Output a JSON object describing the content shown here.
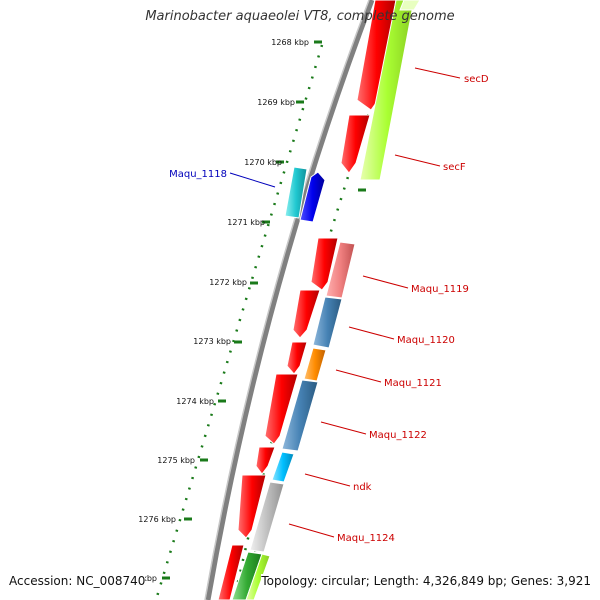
{
  "title": "Marinobacter aquaeolei VT8, complete genome",
  "footer": {
    "accession": "Accession: NC_008740",
    "stats": "Topology: circular; Length: 4,326,849 bp; Genes: 3,921"
  },
  "kbp_labels": [
    "1268 kbp",
    "1269 kbp",
    "1270 kbp",
    "1271 kbp",
    "1272 kbp",
    "1273 kbp",
    "1274 kbp",
    "1275 kbp",
    "1276 kbp",
    "1277 kbp"
  ],
  "gene_labels": {
    "maqu_1118": "Maqu_1118",
    "secD": "secD",
    "secF": "secF",
    "maqu_1119": "Maqu_1119",
    "maqu_1120": "Maqu_1120",
    "maqu_1121": "Maqu_1121",
    "maqu_1122": "Maqu_1122",
    "ndk": "ndk",
    "maqu_1124": "Maqu_1124"
  },
  "colors": {
    "cds_track": "#ff0000",
    "secD_secF": "#aaff33",
    "maqu_1118_a": "#20c8d0",
    "maqu_1118_b": "#0000ee",
    "maqu_1119": "#f08080",
    "maqu_1120": "#4682b4",
    "maqu_1121": "#ff8c00",
    "maqu_1122": "#4682b4",
    "ndk": "#00bfff",
    "maqu_1124": "#c0c0c0",
    "tail_green": "#33aa33",
    "ticks": "#1a7a1a",
    "label_red": "#cc0000",
    "label_blue": "#0000bb",
    "backbone": "#808080"
  }
}
